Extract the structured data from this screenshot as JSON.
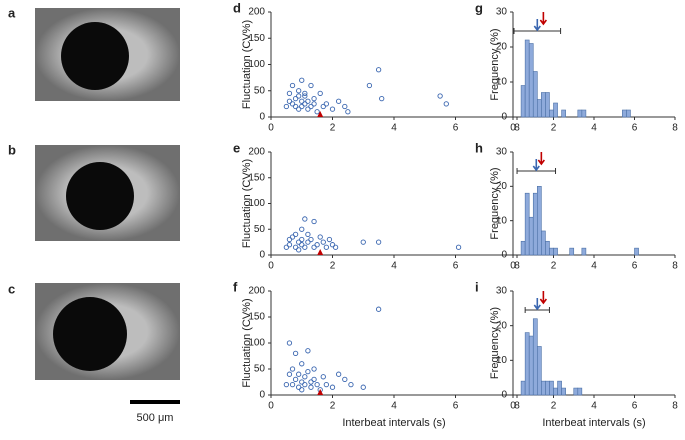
{
  "images": {
    "panels": [
      "a",
      "b",
      "c"
    ],
    "scale_bar": "500 μm"
  },
  "chart_data": [
    {
      "type": "scatter",
      "panel": "d",
      "ylabel": "Fluctuation (CV%)",
      "color": "#3a66b0",
      "marker_color": "#c00000",
      "marker_x": 1.6,
      "xlim": [
        0,
        8
      ],
      "xticks": [
        0,
        2,
        4,
        6,
        8
      ],
      "ylim": [
        0,
        200
      ],
      "yticks": [
        0,
        50,
        100,
        150,
        200
      ],
      "x": [
        0.6,
        0.7,
        0.7,
        0.8,
        0.8,
        0.9,
        0.9,
        0.9,
        1.0,
        1.0,
        1.0,
        1.1,
        1.1,
        1.1,
        1.2,
        1.2,
        1.3,
        1.3,
        1.4,
        1.4,
        1.5,
        1.6,
        1.7,
        1.8,
        2.0,
        2.2,
        2.4,
        2.5,
        3.2,
        3.5,
        3.6,
        5.5,
        5.7,
        0.5,
        0.6
      ],
      "values": [
        45,
        25,
        60,
        20,
        35,
        50,
        15,
        40,
        30,
        70,
        20,
        40,
        25,
        45,
        30,
        15,
        20,
        60,
        35,
        25,
        10,
        45,
        20,
        25,
        15,
        30,
        20,
        10,
        60,
        90,
        35,
        40,
        25,
        20,
        30
      ]
    },
    {
      "type": "scatter",
      "panel": "e",
      "ylabel": "Fluctuation (CV%)",
      "color": "#3a66b0",
      "marker_color": "#c00000",
      "marker_x": 1.6,
      "xlim": [
        0,
        8
      ],
      "xticks": [
        0,
        2,
        4,
        6,
        8
      ],
      "ylim": [
        0,
        200
      ],
      "yticks": [
        0,
        50,
        100,
        150,
        200
      ],
      "x": [
        0.6,
        0.7,
        0.8,
        0.8,
        0.9,
        0.9,
        1.0,
        1.0,
        1.0,
        1.1,
        1.1,
        1.2,
        1.2,
        1.3,
        1.4,
        1.4,
        1.5,
        1.6,
        1.7,
        1.8,
        1.9,
        2.0,
        2.1,
        3.0,
        3.5,
        6.1,
        0.5,
        0.6
      ],
      "values": [
        20,
        35,
        15,
        40,
        25,
        10,
        30,
        50,
        20,
        70,
        15,
        25,
        40,
        30,
        15,
        65,
        20,
        35,
        25,
        15,
        30,
        20,
        15,
        25,
        25,
        15,
        15,
        30
      ]
    },
    {
      "type": "scatter",
      "panel": "f",
      "ylabel": "Fluctuation (CV%)",
      "xlabel": "Interbeat intervals (s)",
      "color": "#3a66b0",
      "marker_color": "#c00000",
      "marker_x": 1.6,
      "xlim": [
        0,
        8
      ],
      "xticks": [
        0,
        2,
        4,
        6,
        8
      ],
      "ylim": [
        0,
        200
      ],
      "yticks": [
        0,
        50,
        100,
        150,
        200
      ],
      "x": [
        0.6,
        0.7,
        0.7,
        0.8,
        0.8,
        0.9,
        0.9,
        1.0,
        1.0,
        1.0,
        1.1,
        1.1,
        1.2,
        1.2,
        1.3,
        1.3,
        1.4,
        1.4,
        1.5,
        1.6,
        1.7,
        1.8,
        2.0,
        2.2,
        2.4,
        2.6,
        3.0,
        3.5,
        0.5,
        0.6
      ],
      "values": [
        100,
        50,
        20,
        80,
        30,
        15,
        40,
        25,
        60,
        10,
        35,
        20,
        85,
        45,
        25,
        15,
        30,
        50,
        20,
        10,
        35,
        20,
        15,
        40,
        30,
        20,
        15,
        165,
        20,
        40
      ]
    },
    {
      "type": "histogram",
      "panel": "g",
      "ylabel": "Frequency (%)",
      "color": "#8eaadb",
      "mean_color": "#3a66b0",
      "marker_color": "#c00000",
      "mean": 1.2,
      "error": 1.15,
      "marker_x": 1.5,
      "xlim": [
        0,
        8
      ],
      "xticks": [
        0,
        2,
        4,
        6,
        8
      ],
      "ylim": [
        0,
        30
      ],
      "yticks": [
        0,
        10,
        20,
        30
      ],
      "bins": [
        0,
        0.2,
        0.4,
        0.6,
        0.8,
        1,
        1.2,
        1.4,
        1.6,
        1.8,
        2,
        2.2,
        2.4,
        2.6,
        2.8,
        3,
        3.2,
        3.4,
        3.6,
        3.8,
        4,
        4.2,
        4.4,
        4.6,
        4.8,
        5,
        5.2,
        5.4,
        5.6,
        5.8,
        6,
        6.2
      ],
      "values": [
        0,
        0,
        9,
        22,
        21,
        13,
        5,
        7,
        7,
        2,
        4,
        0,
        2,
        0,
        0,
        0,
        2,
        2,
        0,
        0,
        0,
        0,
        0,
        0,
        0,
        0,
        0,
        2,
        2,
        0,
        0
      ]
    },
    {
      "type": "histogram",
      "panel": "h",
      "ylabel": "Frequency (%)",
      "color": "#8eaadb",
      "mean_color": "#3a66b0",
      "marker_color": "#c00000",
      "mean": 1.15,
      "error": 0.95,
      "marker_x": 1.4,
      "xlim": [
        0,
        8
      ],
      "xticks": [
        0,
        2,
        4,
        6,
        8
      ],
      "ylim": [
        0,
        30
      ],
      "yticks": [
        0,
        10,
        20,
        30
      ],
      "bins": [
        0,
        0.2,
        0.4,
        0.6,
        0.8,
        1,
        1.2,
        1.4,
        1.6,
        1.8,
        2,
        2.2,
        2.4,
        2.6,
        2.8,
        3,
        3.2,
        3.4,
        3.6,
        3.8,
        4,
        4.2,
        4.4,
        4.6,
        4.8,
        5,
        5.2,
        5.4,
        5.6,
        5.8,
        6,
        6.2
      ],
      "values": [
        0,
        0,
        4,
        18,
        11,
        18,
        20,
        7,
        4,
        2,
        2,
        0,
        0,
        0,
        2,
        0,
        0,
        2,
        0,
        0,
        0,
        0,
        0,
        0,
        0,
        0,
        0,
        0,
        0,
        0,
        2
      ]
    },
    {
      "type": "histogram",
      "panel": "i",
      "ylabel": "Frequency (%)",
      "xlabel": "Interbeat intervals (s)",
      "color": "#8eaadb",
      "mean_color": "#3a66b0",
      "marker_color": "#c00000",
      "mean": 1.2,
      "error": 0.6,
      "marker_x": 1.5,
      "xlim": [
        0,
        8
      ],
      "xticks": [
        0,
        2,
        4,
        6,
        8
      ],
      "ylim": [
        0,
        30
      ],
      "yticks": [
        0,
        10,
        20,
        30
      ],
      "bins": [
        0,
        0.2,
        0.4,
        0.6,
        0.8,
        1,
        1.2,
        1.4,
        1.6,
        1.8,
        2,
        2.2,
        2.4,
        2.6,
        2.8,
        3,
        3.2,
        3.4,
        3.6,
        3.8,
        4,
        4.2,
        4.4,
        4.6,
        4.8,
        5,
        5.2,
        5.4,
        5.6,
        5.8,
        6,
        6.2
      ],
      "values": [
        0,
        0,
        4,
        18,
        17,
        22,
        14,
        4,
        4,
        4,
        2,
        4,
        2,
        0,
        0,
        2,
        2,
        0,
        0,
        0,
        0,
        0,
        0,
        0,
        0,
        0,
        0,
        0,
        0,
        0,
        0
      ]
    }
  ]
}
